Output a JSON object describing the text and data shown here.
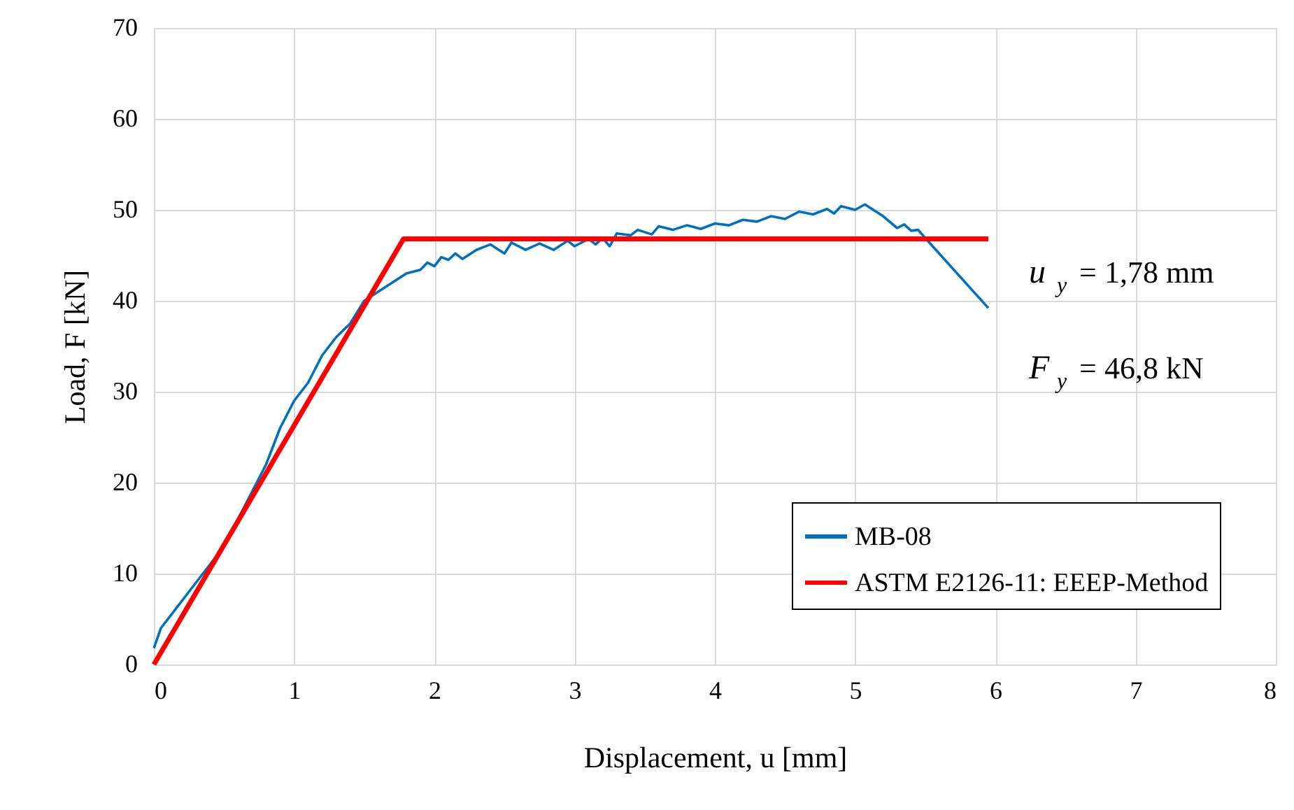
{
  "chart_data": {
    "type": "line",
    "xlabel": "Displacement, u [mm]",
    "ylabel": "Load, F [kN]",
    "xlim": [
      0,
      8
    ],
    "xticks": [
      0,
      1,
      2,
      3,
      4,
      5,
      6,
      7,
      8
    ],
    "ylim": [
      0,
      70
    ],
    "yticks": [
      0,
      10,
      20,
      30,
      40,
      50,
      60,
      70
    ],
    "grid": true,
    "legend": "bottom right",
    "line_style": "solid",
    "marker": "none",
    "annotations": [
      "u$_{y}$ = 1,78 mm",
      "F$_{y}$ = 46,8 kN"
    ],
    "series": [
      {
        "name": "MB-08",
        "color": "#0070c0",
        "x": [
          0,
          0.05,
          0.1,
          0.2,
          0.3,
          0.4,
          0.5,
          0.6,
          0.7,
          0.8,
          0.9,
          1.0,
          1.1,
          1.2,
          1.3,
          1.4,
          1.5,
          1.6,
          1.7,
          1.8,
          1.9,
          1.95,
          2.0,
          2.05,
          2.1,
          2.15,
          2.2,
          2.3,
          2.4,
          2.5,
          2.55,
          2.65,
          2.75,
          2.85,
          2.95,
          3.0,
          3.1,
          3.15,
          3.2,
          3.25,
          3.3,
          3.4,
          3.45,
          3.55,
          3.6,
          3.7,
          3.8,
          3.9,
          4.0,
          4.1,
          4.2,
          4.3,
          4.4,
          4.5,
          4.6,
          4.7,
          4.8,
          4.85,
          4.9,
          5.0,
          5.07,
          5.2,
          5.3,
          5.35,
          5.4,
          5.45,
          5.5,
          5.95
        ],
        "values": [
          1.8,
          4,
          5,
          7,
          9,
          11,
          13,
          16,
          19,
          22,
          26,
          29,
          31,
          34,
          36,
          37.5,
          40,
          41,
          42,
          43,
          43.4,
          44.2,
          43.8,
          44.8,
          44.5,
          45.2,
          44.6,
          45.6,
          46.2,
          45.2,
          46.4,
          45.6,
          46.3,
          45.6,
          46.6,
          46.0,
          46.8,
          46.2,
          46.9,
          46.0,
          47.4,
          47.2,
          47.8,
          47.3,
          48.2,
          47.8,
          48.3,
          47.9,
          48.5,
          48.3,
          48.9,
          48.7,
          49.3,
          49.0,
          49.8,
          49.5,
          50.1,
          49.6,
          50.4,
          50.0,
          50.6,
          49.3,
          48.0,
          48.4,
          47.7,
          47.8,
          46.9,
          39.2
        ]
      },
      {
        "name": "ASTM E2126-11: EEEP-Method",
        "color": "#ff0000",
        "x": [
          0,
          1.78,
          5.95
        ],
        "values": [
          0,
          46.8,
          46.8
        ]
      }
    ]
  }
}
